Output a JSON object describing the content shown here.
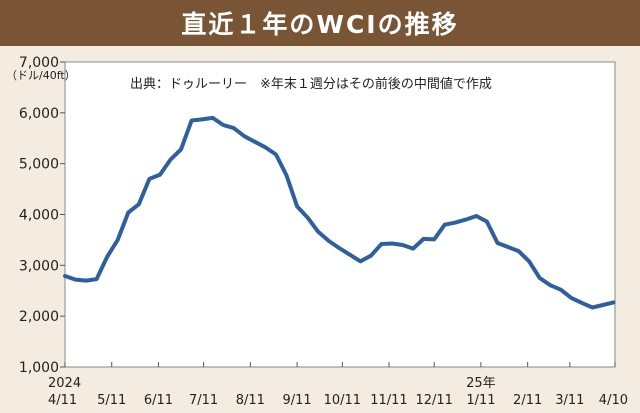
{
  "title": "直近１年のWCIの推移",
  "chart_data": {
    "type": "line",
    "source_note": "出典：ドゥルーリー　※年末１週分はその前後の中間値で作成",
    "ylabel": "（ドル/40ft）",
    "ylim": [
      1000,
      7000
    ],
    "yticks": [
      1000,
      2000,
      3000,
      4000,
      5000,
      6000,
      7000
    ],
    "ytick_labels": [
      "1,000",
      "2,000",
      "3,000",
      "4,000",
      "5,000",
      "6,000",
      "7,000"
    ],
    "xticks": [
      {
        "label": "4/11",
        "year": "2024",
        "week": 0
      },
      {
        "label": "5/11",
        "week": 4.43
      },
      {
        "label": "6/11",
        "week": 8.86
      },
      {
        "label": "7/11",
        "week": 13.14
      },
      {
        "label": "8/11",
        "week": 17.57
      },
      {
        "label": "9/11",
        "week": 22.0
      },
      {
        "label": "10/11",
        "week": 26.29
      },
      {
        "label": "11/11",
        "week": 30.71
      },
      {
        "label": "12/11",
        "week": 35.0
      },
      {
        "label": "1/11",
        "year": "25年",
        "week": 39.43
      },
      {
        "label": "2/11",
        "week": 43.86
      },
      {
        "label": "3/11",
        "week": 47.86
      },
      {
        "label": "4/10",
        "week": 52.14
      }
    ],
    "grid": false,
    "series": [
      {
        "color": "#2e5f9e",
        "points": [
          [
            0,
            2790
          ],
          [
            1,
            2720
          ],
          [
            2,
            2700
          ],
          [
            3,
            2730
          ],
          [
            4,
            3170
          ],
          [
            5,
            3500
          ],
          [
            6,
            4040
          ],
          [
            7,
            4200
          ],
          [
            8,
            4700
          ],
          [
            9,
            4780
          ],
          [
            10,
            5080
          ],
          [
            11,
            5280
          ],
          [
            12,
            5850
          ],
          [
            13,
            5870
          ],
          [
            14,
            5900
          ],
          [
            15,
            5760
          ],
          [
            16,
            5700
          ],
          [
            17,
            5540
          ],
          [
            18,
            5430
          ],
          [
            19,
            5320
          ],
          [
            20,
            5180
          ],
          [
            21,
            4770
          ],
          [
            22,
            4160
          ],
          [
            23,
            3940
          ],
          [
            24,
            3660
          ],
          [
            25,
            3480
          ],
          [
            26,
            3340
          ],
          [
            27,
            3210
          ],
          [
            28,
            3080
          ],
          [
            29,
            3190
          ],
          [
            30,
            3420
          ],
          [
            31,
            3430
          ],
          [
            32,
            3400
          ],
          [
            33,
            3330
          ],
          [
            34,
            3520
          ],
          [
            35,
            3510
          ],
          [
            36,
            3800
          ],
          [
            37,
            3840
          ],
          [
            38,
            3900
          ],
          [
            39,
            3970
          ],
          [
            40,
            3860
          ],
          [
            41,
            3440
          ],
          [
            42,
            3360
          ],
          [
            43,
            3280
          ],
          [
            44,
            3080
          ],
          [
            45,
            2750
          ],
          [
            46,
            2610
          ],
          [
            47,
            2520
          ],
          [
            48,
            2360
          ],
          [
            49,
            2260
          ],
          [
            50,
            2170
          ],
          [
            51,
            2220
          ],
          [
            52,
            2270
          ]
        ]
      }
    ]
  }
}
